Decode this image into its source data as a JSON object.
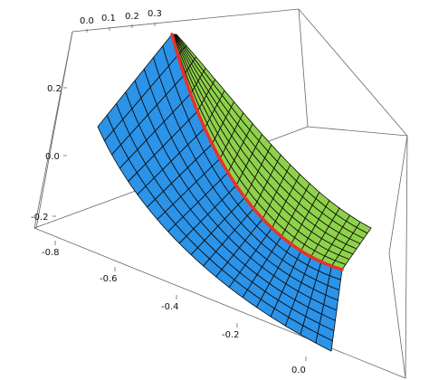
{
  "chart_data": {
    "type": "surface3d",
    "title": "",
    "axes": {
      "x": {
        "label": "",
        "range": [
          0.0,
          0.3
        ],
        "ticks": [
          "0.0",
          "0.1",
          "0.2",
          "0.3"
        ]
      },
      "y": {
        "label": "",
        "range": [
          -0.9,
          0.0
        ],
        "ticks": [
          "-0.8",
          "-0.6",
          "-0.4",
          "-0.2",
          "0.0"
        ]
      },
      "z": {
        "label": "",
        "range": [
          -0.25,
          0.35
        ],
        "ticks": [
          "0.2",
          "0.0",
          "-0.2"
        ]
      }
    },
    "surfaces": [
      {
        "name": "",
        "color": "#2b93e8",
        "side": "lower",
        "mesh_u": 8,
        "mesh_v": 20
      },
      {
        "name": "",
        "color": "#8fd14a",
        "side": "upper",
        "mesh_u": 8,
        "mesh_v": 20
      }
    ],
    "boundary_curve": {
      "color": "#e8322a"
    },
    "grid": false,
    "box": true,
    "legend": "none"
  }
}
